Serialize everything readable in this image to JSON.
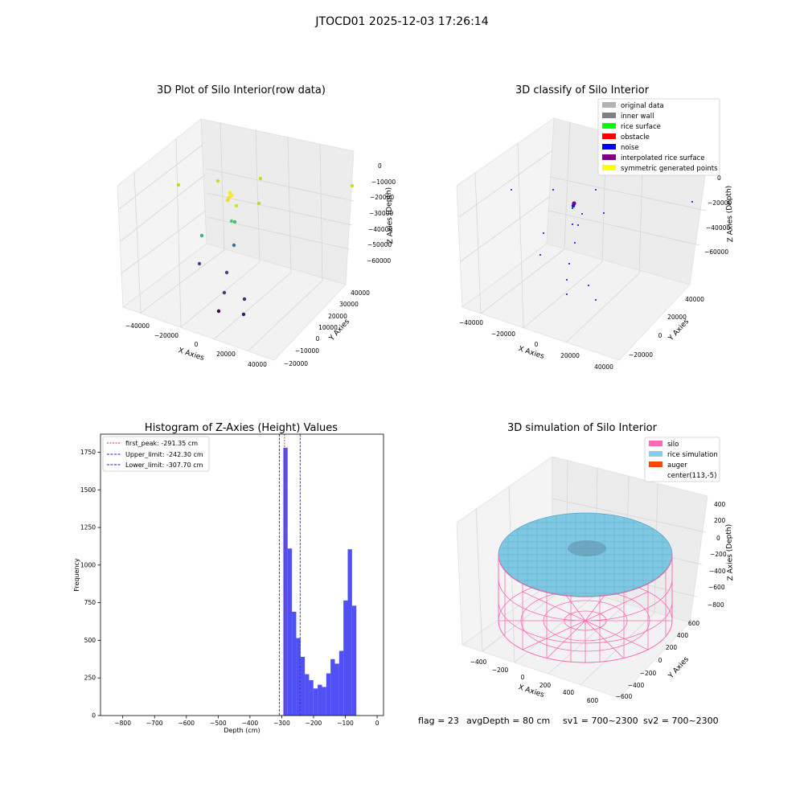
{
  "figure_title": "JTOCD01 2025-12-03 17:26:14",
  "status_text": {
    "flag": "flag = 23",
    "avg_depth": "avgDepth = 80 cm",
    "sv1": "sv1 = 700~2300",
    "sv2": "sv2 = 700~2300"
  },
  "colors": {
    "hist_bar": "#5050f5",
    "peak_line": "#e8202a",
    "limit_line": "#2020e0",
    "silo": "#ff69b4",
    "rice": "#7ec8e3",
    "auger": "#ff4500",
    "grid": "#d8d8d8",
    "pane": "#f2f2f2"
  },
  "chart_data": [
    {
      "type": "scatter",
      "title": "3D Plot of Silo Interior(row data)",
      "xlabel": "X Axies",
      "ylabel": "Y Axies",
      "zlabel": "Z Axies (Depth)",
      "x_ticks": [
        "−40000",
        "−20000",
        "0",
        "20000",
        "40000"
      ],
      "y_ticks": [
        "−20000",
        "−10000",
        "0",
        "10000",
        "20000",
        "30000",
        "40000"
      ],
      "z_ticks": [
        "0",
        "−10000",
        "−20000",
        "−30000",
        "−40000",
        "−50000",
        "−60000"
      ],
      "xlim": [
        -45000,
        45000
      ],
      "ylim": [
        -20000,
        45000
      ],
      "zlim": [
        -65000,
        0
      ],
      "points": [
        {
          "x": 38000,
          "y": 40000,
          "z": -13000
        },
        {
          "x": -25000,
          "y": 36000,
          "z": -21000
        },
        {
          "x": -4000,
          "y": 20000,
          "z": -9000
        },
        {
          "x": 11000,
          "y": 22000,
          "z": -10000
        },
        {
          "x": -2000,
          "y": 15000,
          "z": -17000
        },
        {
          "x": -1000,
          "y": 14000,
          "z": -18000
        },
        {
          "x": -1500,
          "y": 14500,
          "z": -20000
        },
        {
          "x": -2500,
          "y": 13500,
          "z": -21000
        },
        {
          "x": -3000,
          "y": 13000,
          "z": -22000
        },
        {
          "x": 1000,
          "y": 11000,
          "z": -24000
        },
        {
          "x": 17000,
          "y": 18000,
          "z": -27000
        },
        {
          "x": 1000,
          "y": 10000,
          "z": -34000
        },
        {
          "x": 3000,
          "y": 9000,
          "z": -33000
        },
        {
          "x": -15000,
          "y": 5000,
          "z": -40000
        },
        {
          "x": 3000,
          "y": 6000,
          "z": -44000
        },
        {
          "x": -15000,
          "y": -3000,
          "z": -48000
        },
        {
          "x": 3000,
          "y": -2000,
          "z": -52000
        },
        {
          "x": 2000,
          "y": -7000,
          "z": -58000
        },
        {
          "x": 11000,
          "y": -4000,
          "z": -63000
        },
        {
          "x": 4000,
          "y": -10000,
          "z": -65000
        },
        {
          "x": 10000,
          "y": -9000,
          "z": -66000
        }
      ]
    },
    {
      "type": "scatter",
      "title": "3D classify of Silo Interior",
      "xlabel": "X Axies",
      "ylabel": "Y Axies",
      "zlabel": "Z Axies (Depth)",
      "x_ticks": [
        "−40000",
        "−20000",
        "0",
        "20000",
        "40000"
      ],
      "y_ticks": [
        "−20000",
        "0",
        "20000",
        "40000"
      ],
      "z_ticks": [
        "0",
        "−20000",
        "−40000",
        "−60000"
      ],
      "xlim": [
        -45000,
        45000
      ],
      "ylim": [
        -25000,
        45000
      ],
      "zlim": [
        -65000,
        0
      ],
      "legend": {
        "position": "upper right",
        "entries": [
          {
            "label": "original data",
            "color": "#b3b3b3"
          },
          {
            "label": "inner wall",
            "color": "#808080"
          },
          {
            "label": "rice surface",
            "color": "#00ff00"
          },
          {
            "label": "obstacle",
            "color": "#ff0000"
          },
          {
            "label": "noise",
            "color": "#0000ff"
          },
          {
            "label": "interpolated rice surface",
            "color": "#800080"
          },
          {
            "label": "symmetric generated points",
            "color": "#ffff00"
          }
        ]
      },
      "points": [
        {
          "x": 38000,
          "y": 40000,
          "z": -13000,
          "class": "noise"
        },
        {
          "x": -25000,
          "y": 36000,
          "z": -21000,
          "class": "noise"
        },
        {
          "x": -4000,
          "y": 20000,
          "z": -9000,
          "class": "noise"
        },
        {
          "x": 11000,
          "y": 22000,
          "z": -10000,
          "class": "noise"
        },
        {
          "x": -2000,
          "y": 15000,
          "z": -17000,
          "class": "interpolated rice surface"
        },
        {
          "x": -1000,
          "y": 14000,
          "z": -18000,
          "class": "noise"
        },
        {
          "x": -1500,
          "y": 14500,
          "z": -20000,
          "class": "noise"
        },
        {
          "x": 17000,
          "y": 18000,
          "z": -27000,
          "class": "noise"
        },
        {
          "x": 1000,
          "y": 10000,
          "z": -34000,
          "class": "noise"
        },
        {
          "x": -15000,
          "y": 5000,
          "z": -40000,
          "class": "noise"
        },
        {
          "x": 3000,
          "y": 6000,
          "z": -44000,
          "class": "noise"
        },
        {
          "x": -15000,
          "y": -3000,
          "z": -48000,
          "class": "noise"
        },
        {
          "x": 3000,
          "y": -2000,
          "z": -52000,
          "class": "noise"
        },
        {
          "x": 2000,
          "y": -7000,
          "z": -58000,
          "class": "noise"
        },
        {
          "x": 11000,
          "y": -4000,
          "z": -63000,
          "class": "noise"
        },
        {
          "x": 4000,
          "y": -10000,
          "z": -65000,
          "class": "noise"
        }
      ]
    },
    {
      "type": "bar",
      "title": "Histogram of Z-Axies (Height) Values",
      "xlabel": "Depth (cm)",
      "ylabel": "Frequency",
      "xlim": [
        -870,
        20
      ],
      "ylim": [
        0,
        1870
      ],
      "x_ticks": [
        -800,
        -700,
        -600,
        -500,
        -400,
        -300,
        -200,
        -100,
        0
      ],
      "x_tick_labels": [
        "−800",
        "−700",
        "−600",
        "−500",
        "−400",
        "−300",
        "−200",
        "−100",
        "0"
      ],
      "y_ticks": [
        0,
        250,
        500,
        750,
        1000,
        1250,
        1500,
        1750
      ],
      "bin_width": 13.5,
      "bins": [
        {
          "x": -295,
          "value": 1780
        },
        {
          "x": -281.5,
          "value": 1110
        },
        {
          "x": -268,
          "value": 690
        },
        {
          "x": -254.5,
          "value": 515
        },
        {
          "x": -241,
          "value": 390
        },
        {
          "x": -227.5,
          "value": 275
        },
        {
          "x": -214,
          "value": 235
        },
        {
          "x": -200.5,
          "value": 180
        },
        {
          "x": -187,
          "value": 205
        },
        {
          "x": -173.5,
          "value": 190
        },
        {
          "x": -160,
          "value": 280
        },
        {
          "x": -146.5,
          "value": 375
        },
        {
          "x": -133,
          "value": 345
        },
        {
          "x": -119.5,
          "value": 430
        },
        {
          "x": -106,
          "value": 765
        },
        {
          "x": -92.5,
          "value": 1105
        },
        {
          "x": -79,
          "value": 730
        }
      ],
      "vlines": [
        {
          "name": "first_peak",
          "x": -291.35,
          "label": "first_peak: -291.35 cm",
          "style": "peak"
        },
        {
          "name": "upper_limit",
          "x": -242.3,
          "label": "Upper_limit: -242.30 cm",
          "style": "limit"
        },
        {
          "name": "lower_limit",
          "x": -307.7,
          "label": "Lower_limit: -307.70 cm",
          "style": "limit"
        }
      ],
      "legend": {
        "position": "upper left"
      }
    },
    {
      "type": "surface",
      "title": "3D simulation of Silo Interior",
      "xlabel": "X Axies",
      "ylabel": "Y Axies",
      "zlabel": "Z Axies (Depth)",
      "x_ticks": [
        "−400",
        "−200",
        "0",
        "200",
        "400",
        "600"
      ],
      "y_ticks": [
        "−600",
        "−400",
        "−200",
        "0",
        "200",
        "400",
        "600"
      ],
      "z_ticks": [
        "400",
        "200",
        "0",
        "−200",
        "−400",
        "−600",
        "−800"
      ],
      "legend": {
        "position": "upper right",
        "entries": [
          {
            "label": "silo",
            "color": "#ff69b4"
          },
          {
            "label": "rice simulation",
            "color": "#87ceeb"
          },
          {
            "label": "auger",
            "color": "#ff4500"
          },
          {
            "label": "center(113,-5)",
            "color": ""
          }
        ]
      }
    }
  ]
}
